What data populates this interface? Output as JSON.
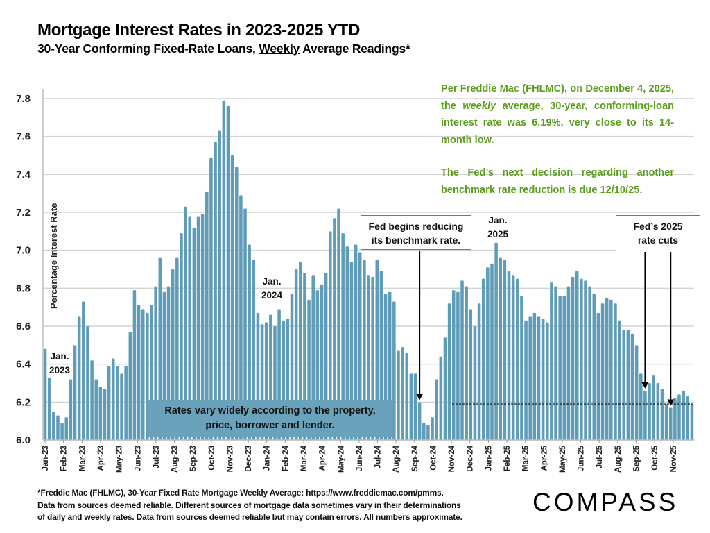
{
  "header": {
    "title": "Mortgage Interest Rates in 2023-2025 YTD",
    "subtitle_pre": "30-Year Conforming Fixed-Rate Loans, ",
    "subtitle_underlined": "Weekly",
    "subtitle_post": " Average Readings*"
  },
  "side_note": {
    "p1_pre": "Per Freddie Mac (FHLMC), on December 4, 2025, the ",
    "p1_italic": "weekly",
    "p1_post": " average, 30-year, conforming-loan interest rate was 6.19%, very close to its 14-month low.",
    "p2": "The Fed’s next decision regarding another benchmark rate reduction is due 12/10/25.",
    "color": "#5a9e1c"
  },
  "callouts": {
    "fed_begins_line1": "Fed begins reducing",
    "fed_begins_line2": "its benchmark rate.",
    "fed_2025_line1": "Fed’s 2025",
    "fed_2025_line2": "rate cuts",
    "vary_line1": "Rates vary widely according to the property,",
    "vary_line2": "price, borrower and lender."
  },
  "footnote": {
    "line1": "*Freddie Mac (FHLMC), 30-Year Fixed Rate Mortgage Weekly Average:  https://www.freddiemac.com/pmms.",
    "line2_pre": "Data from sources deemed reliable. ",
    "line2_underlined": "Different sources of mortgage data sometimes vary in their determinations",
    "line3_underlined": "of daily and weekly rates.",
    "line3_post": " Data from sources deemed reliable but may contain errors. All numbers approximate."
  },
  "logo": "COMPASS",
  "chart_data": {
    "type": "bar",
    "title": "Mortgage Interest Rates in 2023-2025 YTD",
    "xlabel": "",
    "ylabel": "Percentage Interest  Rate",
    "ylim": [
      6.0,
      7.8
    ],
    "yticks": [
      "6.0",
      "6.2",
      "6.4",
      "6.6",
      "6.8",
      "7.0",
      "7.2",
      "7.4",
      "7.6",
      "7.8"
    ],
    "grid": true,
    "bar_color": "#5f9cb8",
    "reference_line": {
      "value": 6.19,
      "style": "dashed",
      "start_label": "Nov-24"
    },
    "x_month_labels": [
      "Jan-23",
      "Feb-23",
      "Mar-23",
      "Apr-23",
      "May-23",
      "Jun-23",
      "Jul-23",
      "Aug-23",
      "Sep-23",
      "Oct-23",
      "Nov-23",
      "Dec-23",
      "Jan-24",
      "Feb-24",
      "Mar-24",
      "Apr-24",
      "May-24",
      "Jun-24",
      "Jul-24",
      "Aug-24",
      "Sep-24",
      "Oct-24",
      "Nov-24",
      "Dec-24",
      "Jan-25",
      "Feb-25",
      "Mar-25",
      "Apr-25",
      "May-25",
      "Jun-25",
      "Jul-25",
      "Aug-25",
      "Sep-25",
      "Oct-25",
      "Nov-25"
    ],
    "year_annotations": [
      {
        "text_line1": "Jan.",
        "text_line2": "2023",
        "month": "Jan-23"
      },
      {
        "text_line1": "Jan.",
        "text_line2": "2024",
        "month": "Jan-24"
      },
      {
        "text_line1": "Jan.",
        "text_line2": "2025",
        "month": "Jan-25"
      }
    ],
    "arrows": [
      {
        "label": "Fed begins reducing its benchmark rate.",
        "week_index": 88
      },
      {
        "label": "Fed’s 2025 rate cuts",
        "week_index": 141
      },
      {
        "label": "Fed’s 2025 rate cuts",
        "week_index": 147
      }
    ],
    "weekly_values": [
      6.48,
      6.33,
      6.15,
      6.13,
      6.09,
      6.12,
      6.32,
      6.5,
      6.65,
      6.73,
      6.6,
      6.42,
      6.32,
      6.28,
      6.27,
      6.39,
      6.43,
      6.39,
      6.35,
      6.39,
      6.57,
      6.79,
      6.71,
      6.69,
      6.67,
      6.71,
      6.81,
      6.96,
      6.78,
      6.81,
      6.9,
      6.96,
      7.09,
      7.23,
      7.18,
      7.12,
      7.18,
      7.19,
      7.31,
      7.49,
      7.57,
      7.63,
      7.79,
      7.76,
      7.5,
      7.44,
      7.29,
      7.22,
      7.03,
      6.95,
      6.67,
      6.61,
      6.62,
      6.66,
      6.6,
      6.69,
      6.63,
      6.64,
      6.77,
      6.9,
      6.94,
      6.88,
      6.74,
      6.87,
      6.79,
      6.82,
      6.88,
      7.1,
      7.17,
      7.22,
      7.09,
      7.02,
      6.94,
      7.03,
      6.99,
      6.95,
      6.87,
      6.86,
      6.95,
      6.89,
      6.77,
      6.78,
      6.73,
      6.47,
      6.49,
      6.46,
      6.35,
      6.35,
      6.2,
      6.09,
      6.08,
      6.12,
      6.32,
      6.44,
      6.54,
      6.72,
      6.79,
      6.78,
      6.84,
      6.81,
      6.69,
      6.6,
      6.72,
      6.85,
      6.91,
      6.93,
      7.04,
      6.96,
      6.95,
      6.89,
      6.87,
      6.85,
      6.76,
      6.63,
      6.65,
      6.67,
      6.65,
      6.64,
      6.62,
      6.83,
      6.81,
      6.76,
      6.76,
      6.81,
      6.86,
      6.89,
      6.85,
      6.84,
      6.81,
      6.77,
      6.67,
      6.72,
      6.75,
      6.74,
      6.72,
      6.63,
      6.58,
      6.58,
      6.56,
      6.5,
      6.35,
      6.26,
      6.3,
      6.34,
      6.3,
      6.27,
      6.19,
      6.17,
      6.22,
      6.24,
      6.26,
      6.23,
      6.19
    ]
  }
}
